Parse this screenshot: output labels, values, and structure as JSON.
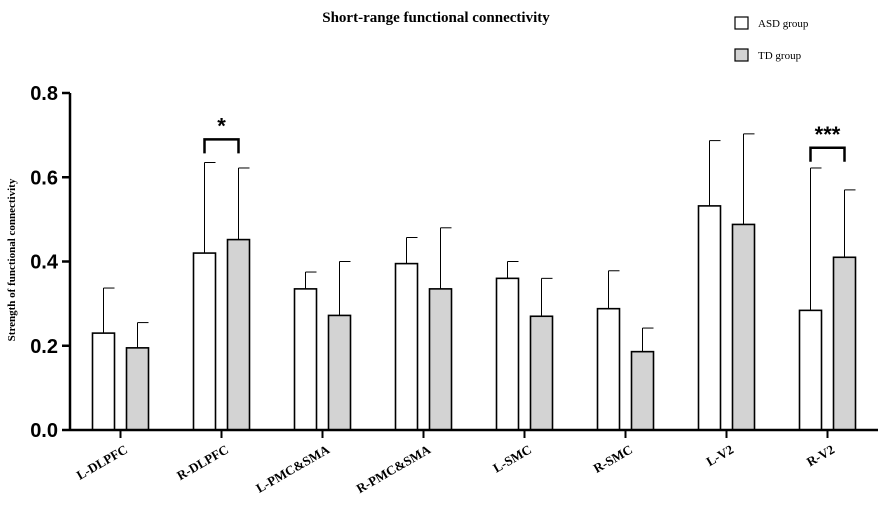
{
  "chart_data": {
    "type": "bar",
    "title": "Short-range functional connectivity",
    "ylabel": "Strength of functional connectivity",
    "xlabel": "",
    "ylim": [
      0,
      0.8
    ],
    "yticks": [
      "0.0",
      "0.2",
      "0.4",
      "0.6",
      "0.8"
    ],
    "ytick_values": [
      0,
      0.2,
      0.4,
      0.6,
      0.8
    ],
    "categories": [
      "L-DLPFC",
      "R-DLPFC",
      "L-PMC&SMA",
      "R-PMC&SMA",
      "L-SMC",
      "R-SMC",
      "L-V2",
      "R-V2"
    ],
    "series": [
      {
        "name": "ASD group",
        "color": "#ffffff",
        "values": [
          0.23,
          0.42,
          0.335,
          0.395,
          0.36,
          0.288,
          0.532,
          0.284
        ],
        "errors": [
          0.107,
          0.215,
          0.04,
          0.062,
          0.04,
          0.09,
          0.155,
          0.338
        ]
      },
      {
        "name": "TD group",
        "color": "#d3d3d3",
        "values": [
          0.195,
          0.452,
          0.272,
          0.335,
          0.27,
          0.186,
          0.488,
          0.41
        ],
        "errors": [
          0.06,
          0.17,
          0.128,
          0.145,
          0.09,
          0.056,
          0.215,
          0.16
        ]
      }
    ],
    "significance": [
      {
        "category_index": 1,
        "label": "*",
        "bracket_y": 0.69
      },
      {
        "category_index": 7,
        "label": "***",
        "bracket_y": 0.67
      }
    ],
    "legend_position": "top-right",
    "grid": false
  }
}
